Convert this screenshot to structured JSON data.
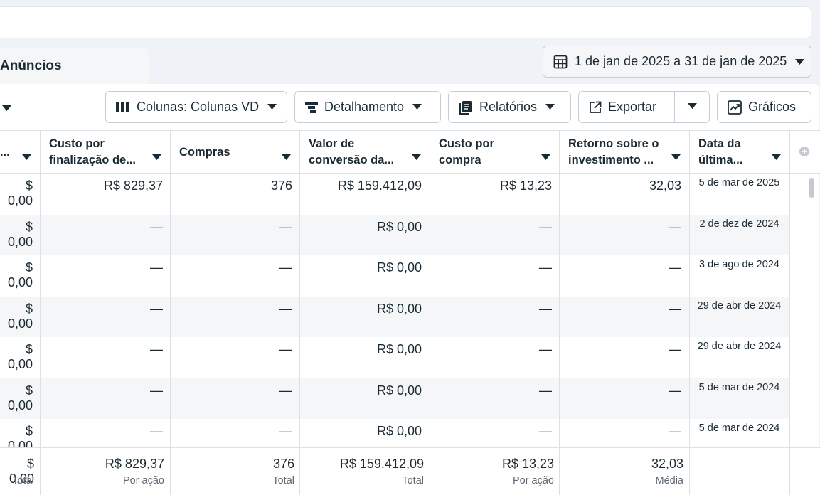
{
  "tab": {
    "label": "Anúncios"
  },
  "date_range": {
    "label": "1 de jan de 2025 a 31 de jan de 2025"
  },
  "toolbar": {
    "columns_label": "Colunas: Colunas VD",
    "breakdown_label": "Detalhamento",
    "reports_label": "Relatórios",
    "export_label": "Exportar",
    "charts_label": "Gráficos"
  },
  "icons": {
    "calendar": "calendar-icon",
    "columns": "columns-icon",
    "breakdown": "breakdown-icon",
    "reports": "reports-icon",
    "export": "export-icon",
    "charts": "line-chart-icon",
    "add_column": "plus-circle-icon"
  },
  "table": {
    "headers": [
      {
        "line1": "",
        "line2": "..."
      },
      {
        "line1": "Custo por",
        "line2": "finalização de..."
      },
      {
        "line1": "Compras",
        "line2": ""
      },
      {
        "line1": "Valor de",
        "line2": "conversão da..."
      },
      {
        "line1": "Custo por",
        "line2": "compra"
      },
      {
        "line1": "Retorno sobre o",
        "line2": "investimento ..."
      },
      {
        "line1": "Data da",
        "line2": "última..."
      }
    ],
    "rows": [
      [
        "$ 0,00",
        "R$ 829,37",
        "376",
        "R$ 159.412,09",
        "R$ 13,23",
        "32,03",
        "5 de mar de 2025"
      ],
      [
        "$ 0,00",
        "—",
        "—",
        "R$ 0,00",
        "—",
        "—",
        "2 de dez de 2024"
      ],
      [
        "$ 0,00",
        "—",
        "—",
        "R$ 0,00",
        "—",
        "—",
        "3 de ago de 2024"
      ],
      [
        "$ 0,00",
        "—",
        "—",
        "R$ 0,00",
        "—",
        "—",
        "29 de abr de 2024"
      ],
      [
        "$ 0,00",
        "—",
        "—",
        "R$ 0,00",
        "—",
        "—",
        "29 de abr de 2024"
      ],
      [
        "$ 0,00",
        "—",
        "—",
        "R$ 0,00",
        "—",
        "—",
        "5 de mar de 2024"
      ],
      [
        "$ 0,00",
        "—",
        "—",
        "R$ 0,00",
        "—",
        "—",
        "5 de mar de 2024"
      ]
    ],
    "totals": [
      {
        "value": "$ 0,00",
        "label": "Total"
      },
      {
        "value": "R$ 829,37",
        "label": "Por ação"
      },
      {
        "value": "376",
        "label": "Total"
      },
      {
        "value": "R$ 159.412,09",
        "label": "Total"
      },
      {
        "value": "R$ 13,23",
        "label": "Por ação"
      },
      {
        "value": "32,03",
        "label": "Média"
      }
    ]
  }
}
